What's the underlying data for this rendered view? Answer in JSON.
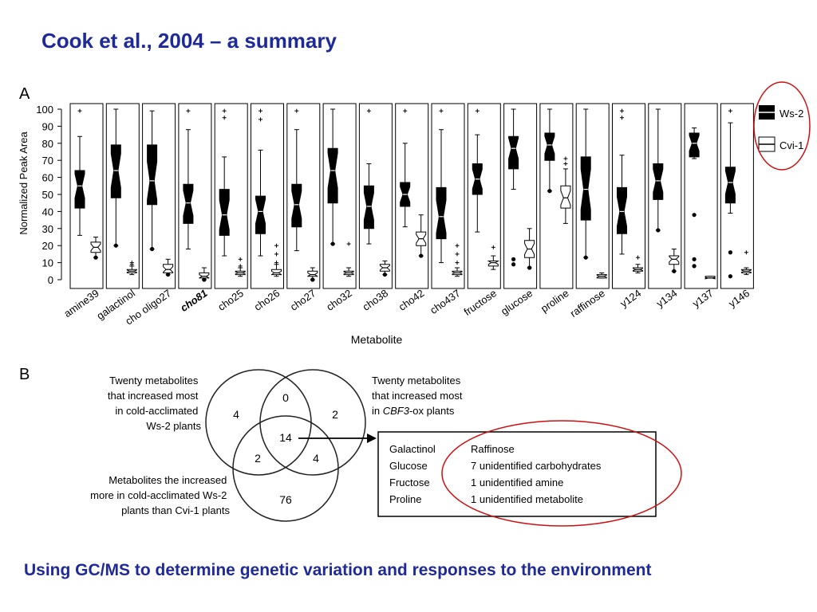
{
  "slide": {
    "title": "Cook et al., 2004 – a summary",
    "footer": "Using GC/MS to determine genetic variation and responses to the environment",
    "accent_color": "#1f2a9a",
    "divider_color": "#d01010",
    "highlight_color": "#d01010"
  },
  "panel_a": {
    "letter": "A"
  },
  "panel_b": {
    "letter": "B"
  },
  "chart_data": {
    "type": "boxplot",
    "ylabel": "Normalized Peak Area",
    "xlabel": "Metabolite",
    "ylim": [
      0,
      100
    ],
    "yticks": [
      0,
      10,
      20,
      30,
      40,
      50,
      60,
      70,
      80,
      90,
      100
    ],
    "grid": false,
    "legend_position": "top-right",
    "series": [
      {
        "name": "Ws-2",
        "fill": "#000000"
      },
      {
        "name": "Cvi-1",
        "fill": "#ffffff"
      }
    ],
    "categories": [
      {
        "label": "amine39",
        "bold": false,
        "ws2": {
          "wlo": 26,
          "q1": 42,
          "med": 55,
          "q3": 64,
          "whi": 84,
          "out": [
            99
          ]
        },
        "cvi": {
          "wlo": 13,
          "q1": 16,
          "med": 19,
          "q3": 22,
          "whi": 25,
          "out": [
            13
          ]
        }
      },
      {
        "label": "galactinol",
        "bold": false,
        "ws2": {
          "wlo": 20,
          "q1": 48,
          "med": 64,
          "q3": 79,
          "whi": 100,
          "out": [
            20
          ]
        },
        "cvi": {
          "wlo": 3,
          "q1": 4,
          "med": 5,
          "q3": 6,
          "whi": 8,
          "out": [
            10,
            9
          ]
        }
      },
      {
        "label": "cho oligo27",
        "bold": false,
        "ws2": {
          "wlo": 18,
          "q1": 44,
          "med": 58,
          "q3": 79,
          "whi": 99,
          "out": [
            18
          ]
        },
        "cvi": {
          "wlo": 3,
          "q1": 4,
          "med": 6,
          "q3": 9,
          "whi": 12,
          "out": [
            3
          ]
        }
      },
      {
        "label": "cho81",
        "bold": true,
        "ws2": {
          "wlo": 18,
          "q1": 33,
          "med": 45,
          "q3": 56,
          "whi": 88,
          "out": [
            99
          ]
        },
        "cvi": {
          "wlo": 0,
          "q1": 1,
          "med": 2,
          "q3": 4,
          "whi": 7,
          "out": [
            0
          ]
        }
      },
      {
        "label": "cho25",
        "bold": false,
        "ws2": {
          "wlo": 14,
          "q1": 26,
          "med": 38,
          "q3": 53,
          "whi": 72,
          "out": [
            99,
            95
          ]
        },
        "cvi": {
          "wlo": 2,
          "q1": 3,
          "med": 4,
          "q3": 5,
          "whi": 7,
          "out": [
            12,
            8
          ]
        }
      },
      {
        "label": "cho26",
        "bold": false,
        "ws2": {
          "wlo": 14,
          "q1": 27,
          "med": 40,
          "q3": 49,
          "whi": 76,
          "out": [
            99,
            94
          ]
        },
        "cvi": {
          "wlo": 2,
          "q1": 3,
          "med": 4,
          "q3": 6,
          "whi": 9,
          "out": [
            20,
            15,
            10
          ]
        }
      },
      {
        "label": "cho27",
        "bold": false,
        "ws2": {
          "wlo": 17,
          "q1": 31,
          "med": 44,
          "q3": 56,
          "whi": 88,
          "out": [
            99
          ]
        },
        "cvi": {
          "wlo": 0,
          "q1": 2,
          "med": 3,
          "q3": 5,
          "whi": 7,
          "out": [
            0
          ]
        }
      },
      {
        "label": "cho32",
        "bold": false,
        "ws2": {
          "wlo": 21,
          "q1": 45,
          "med": 64,
          "q3": 77,
          "whi": 100,
          "out": [
            21
          ]
        },
        "cvi": {
          "wlo": 2,
          "q1": 3,
          "med": 4,
          "q3": 5,
          "whi": 7,
          "out": [
            21
          ]
        }
      },
      {
        "label": "cho38",
        "bold": false,
        "ws2": {
          "wlo": 21,
          "q1": 30,
          "med": 43,
          "q3": 55,
          "whi": 68,
          "out": [
            99
          ]
        },
        "cvi": {
          "wlo": 3,
          "q1": 5,
          "med": 7,
          "q3": 9,
          "whi": 11,
          "out": [
            3
          ]
        }
      },
      {
        "label": "cho42",
        "bold": false,
        "ws2": {
          "wlo": 31,
          "q1": 43,
          "med": 50,
          "q3": 57,
          "whi": 80,
          "out": [
            99
          ]
        },
        "cvi": {
          "wlo": 14,
          "q1": 20,
          "med": 24,
          "q3": 28,
          "whi": 38,
          "out": [
            14
          ]
        }
      },
      {
        "label": "cho437",
        "bold": false,
        "ws2": {
          "wlo": 10,
          "q1": 24,
          "med": 37,
          "q3": 54,
          "whi": 88,
          "out": [
            99
          ]
        },
        "cvi": {
          "wlo": 2,
          "q1": 3,
          "med": 4,
          "q3": 5,
          "whi": 7,
          "out": [
            20,
            15,
            10
          ]
        }
      },
      {
        "label": "fructose",
        "bold": false,
        "ws2": {
          "wlo": 28,
          "q1": 50,
          "med": 59,
          "q3": 68,
          "whi": 85,
          "out": [
            99
          ]
        },
        "cvi": {
          "wlo": 6,
          "q1": 8,
          "med": 10,
          "q3": 11,
          "whi": 14,
          "out": [
            19
          ]
        }
      },
      {
        "label": "glucose",
        "bold": false,
        "ws2": {
          "wlo": 53,
          "q1": 65,
          "med": 77,
          "q3": 84,
          "whi": 100,
          "out": [
            12,
            9
          ]
        },
        "cvi": {
          "wlo": 7,
          "q1": 13,
          "med": 18,
          "q3": 23,
          "whi": 30,
          "out": [
            7
          ]
        }
      },
      {
        "label": "proline",
        "bold": false,
        "ws2": {
          "wlo": 52,
          "q1": 70,
          "med": 79,
          "q3": 86,
          "whi": 100,
          "out": [
            52
          ]
        },
        "cvi": {
          "wlo": 33,
          "q1": 42,
          "med": 48,
          "q3": 55,
          "whi": 65,
          "out": [
            71,
            68
          ]
        }
      },
      {
        "label": "raffinose",
        "bold": false,
        "ws2": {
          "wlo": 13,
          "q1": 35,
          "med": 53,
          "q3": 72,
          "whi": 100,
          "out": [
            13
          ]
        },
        "cvi": {
          "wlo": 1,
          "q1": 1,
          "med": 2,
          "q3": 3,
          "whi": 4,
          "out": []
        }
      },
      {
        "label": "y124",
        "bold": false,
        "ws2": {
          "wlo": 15,
          "q1": 27,
          "med": 40,
          "q3": 54,
          "whi": 73,
          "out": [
            99,
            95
          ]
        },
        "cvi": {
          "wlo": 4,
          "q1": 5,
          "med": 6,
          "q3": 7,
          "whi": 9,
          "out": [
            13
          ]
        }
      },
      {
        "label": "y134",
        "bold": false,
        "ws2": {
          "wlo": 29,
          "q1": 47,
          "med": 58,
          "q3": 68,
          "whi": 100,
          "out": [
            29
          ]
        },
        "cvi": {
          "wlo": 5,
          "q1": 9,
          "med": 12,
          "q3": 14,
          "whi": 18,
          "out": [
            5
          ]
        }
      },
      {
        "label": "y137",
        "bold": false,
        "ws2": {
          "wlo": 71,
          "q1": 72,
          "med": 80,
          "q3": 86,
          "whi": 89,
          "out": [
            38,
            12,
            8
          ]
        },
        "cvi": {
          "wlo": 1,
          "q1": 1,
          "med": 1,
          "q3": 2,
          "whi": 2,
          "out": []
        }
      },
      {
        "label": "y146",
        "bold": false,
        "ws2": {
          "wlo": 39,
          "q1": 45,
          "med": 57,
          "q3": 66,
          "whi": 92,
          "out": [
            99,
            16,
            2
          ]
        },
        "cvi": {
          "wlo": 3,
          "q1": 4,
          "med": 5,
          "q3": 6,
          "whi": 7,
          "out": [
            16
          ]
        }
      }
    ]
  },
  "venn": {
    "left_label": [
      "Twenty metabolites",
      "that increased most",
      "in cold-acclimated",
      "Ws-2 plants"
    ],
    "right_label": [
      "Twenty metabolites",
      "that increased most",
      "in ",
      "CBF3",
      "-ox plants"
    ],
    "bottom_label": [
      "Metabolites the increased",
      "more in cold-acclimated Ws-2",
      "plants than Cvi-1 plants"
    ],
    "counts": {
      "left_only": "4",
      "top_overlap": "0",
      "right_only": "2",
      "center": "14",
      "left_bottom": "2",
      "right_bottom": "4",
      "bottom_only": "76"
    }
  },
  "result_box": {
    "col1": [
      "Galactinol",
      "Glucose",
      "Fructose",
      "Proline"
    ],
    "col2": [
      "Raffinose",
      "7 unidentified carbohydrates",
      "1 unidentified amine",
      "1 unidentified metabolite"
    ]
  }
}
